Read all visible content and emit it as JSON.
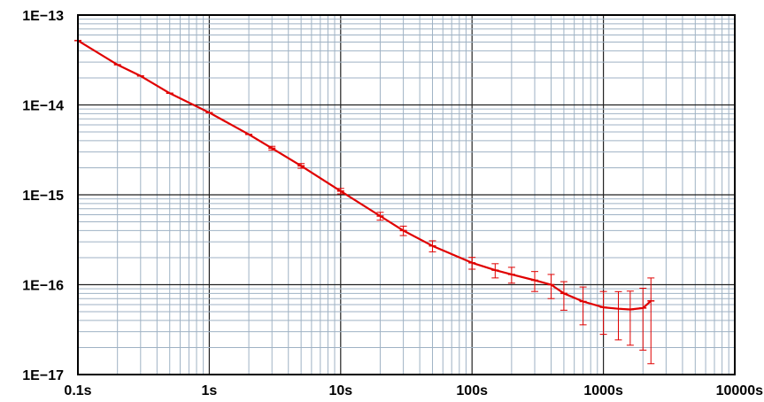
{
  "chart_data": {
    "type": "line",
    "x_scale": "log",
    "y_scale": "log",
    "xlim": [
      0.1,
      10000
    ],
    "ylim": [
      1e-17,
      1e-13
    ],
    "grid": true,
    "x_tick_values": [
      0.1,
      1,
      10,
      100,
      1000,
      10000
    ],
    "x_tick_labels": [
      "0.1s",
      "1s",
      "10s",
      "100s",
      "1000s",
      "10000s"
    ],
    "y_tick_values": [
      1e-13,
      1e-14,
      1e-15,
      1e-16,
      1e-17
    ],
    "y_tick_labels": [
      "1E−13",
      "1E−14",
      "1E−15",
      "1E−16",
      "1E−17"
    ],
    "series": [
      {
        "color": "#e00000",
        "x": [
          0.1,
          0.2,
          0.3,
          0.5,
          1,
          2,
          3,
          5,
          10,
          20,
          30,
          50,
          100,
          150,
          200,
          300,
          400,
          500,
          700,
          1000,
          1300,
          1600,
          2000,
          2300
        ],
        "y": [
          5.2e-14,
          2.8e-14,
          2.1e-14,
          1.35e-14,
          8.2e-15,
          4.7e-15,
          3.3e-15,
          2.1e-15,
          1.1e-15,
          5.8e-16,
          4e-16,
          2.7e-16,
          1.75e-16,
          1.45e-16,
          1.3e-16,
          1.12e-16,
          1e-16,
          8e-17,
          6.5e-17,
          5.6e-17,
          5.4e-17,
          5.3e-17,
          5.5e-17,
          6.6e-17
        ],
        "err": [
          0.0,
          0.0,
          0.0,
          0.0,
          0.0,
          0.0,
          0.05,
          0.06,
          0.07,
          0.1,
          0.12,
          0.14,
          0.15,
          0.18,
          0.2,
          0.25,
          0.3,
          0.35,
          0.45,
          0.5,
          0.55,
          0.6,
          0.66,
          0.8
        ]
      }
    ]
  }
}
